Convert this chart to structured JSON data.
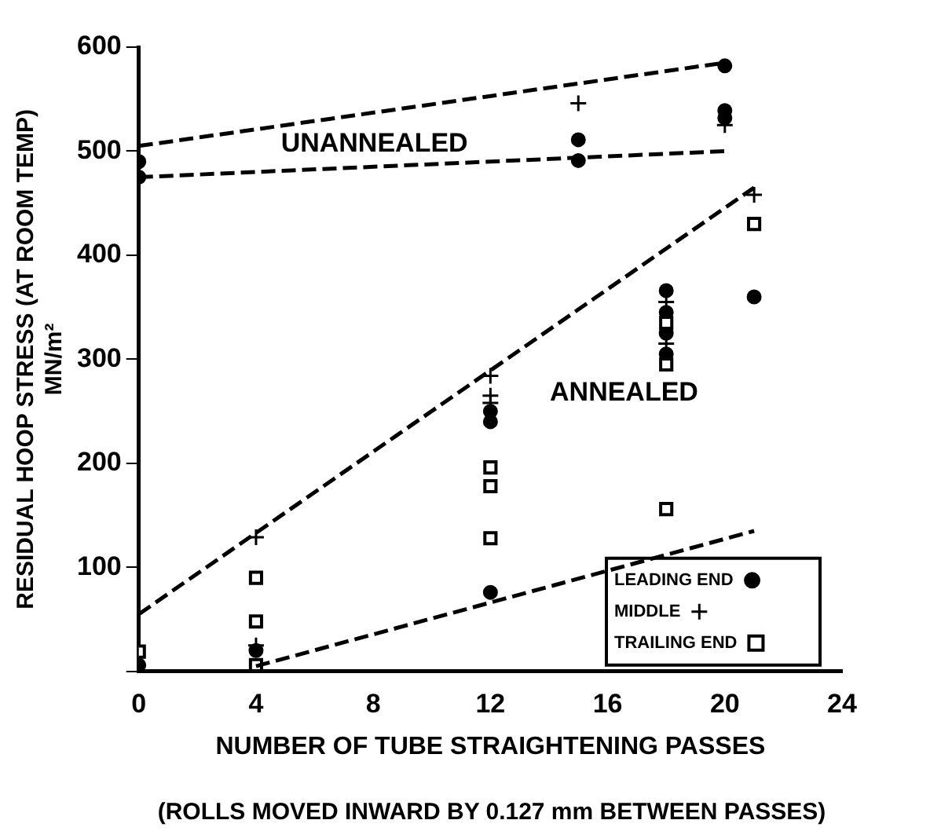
{
  "chart_data": {
    "type": "scatter",
    "xlabel": "NUMBER OF TUBE STRAIGHTENING PASSES",
    "ylabel": "RESIDUAL HOOP STRESS (AT ROOM TEMP)\nMN/m²",
    "xlim": [
      0,
      24
    ],
    "xticks": [
      0,
      4,
      8,
      12,
      16,
      20,
      24
    ],
    "ylim": [
      0,
      600
    ],
    "yticks": [
      {
        "value": 0,
        "label": null
      },
      100,
      200,
      300,
      400,
      500,
      600
    ],
    "grid": false,
    "legend": "bottom right",
    "annotations": [
      "UNANNEALED",
      "ANNEALED",
      "(ROLLS MOVED INWARD BY 0.127 mm BETWEEN PASSES)"
    ],
    "series": [
      {
        "name": "LEADING END",
        "color": "#000000",
        "marker": "circle",
        "x": [
          0,
          0,
          15,
          15,
          20,
          20,
          20,
          12,
          12,
          12,
          18,
          18,
          18,
          18,
          21,
          4,
          0
        ],
        "values": [
          490,
          475,
          511,
          491,
          582,
          539,
          532,
          250,
          240,
          76,
          366,
          345,
          325,
          305,
          360,
          20,
          6
        ]
      },
      {
        "name": "MIDDLE",
        "color": "#000000",
        "marker": "cross",
        "x": [
          15,
          20,
          21,
          12,
          12,
          12,
          18,
          18,
          4,
          4
        ],
        "values": [
          546,
          525,
          458,
          284,
          265,
          258,
          355,
          315,
          129,
          25
        ]
      },
      {
        "name": "TRAILING END",
        "color": "#000000",
        "marker": "square",
        "x": [
          21,
          12,
          12,
          12,
          18,
          18,
          18,
          4,
          4,
          4,
          0
        ],
        "values": [
          430,
          196,
          178,
          128,
          335,
          295,
          156,
          90,
          48,
          6,
          19
        ]
      },
      {
        "type": "line",
        "color": "#000000",
        "line_style": "dashed",
        "marker": "none",
        "x": [
          0,
          20
        ],
        "values": [
          505,
          585
        ]
      },
      {
        "type": "line",
        "color": "#000000",
        "line_style": "dashed",
        "marker": "none",
        "x": [
          0,
          20
        ],
        "values": [
          475,
          500
        ]
      },
      {
        "type": "line",
        "color": "#000000",
        "line_style": "dashed",
        "marker": "none",
        "x": [
          0,
          21
        ],
        "values": [
          55,
          465
        ]
      },
      {
        "type": "line",
        "color": "#000000",
        "line_style": "dashed",
        "marker": "none",
        "x": [
          4,
          21
        ],
        "values": [
          5,
          135
        ]
      }
    ]
  }
}
